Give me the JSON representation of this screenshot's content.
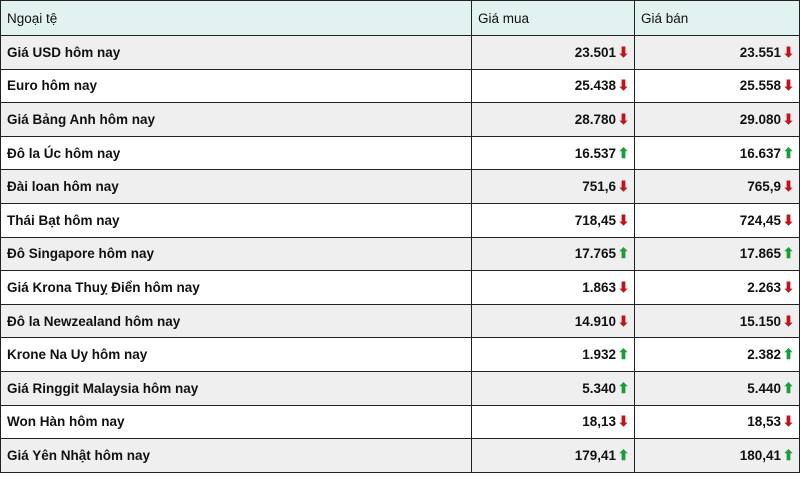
{
  "header": {
    "currency": "Ngoại tệ",
    "buy": "Giá mua",
    "sell": "Giá bán"
  },
  "colors": {
    "down": "#c0141c",
    "up": "#1a9c3a",
    "header_bg": "#e1f2f0"
  },
  "rows": [
    {
      "name": "Giá USD hôm nay",
      "buy": "23.501",
      "buy_trend": "down",
      "sell": "23.551",
      "sell_trend": "down"
    },
    {
      "name": "Euro hôm nay",
      "buy": "25.438",
      "buy_trend": "down",
      "sell": "25.558",
      "sell_trend": "down"
    },
    {
      "name": "Giá Bảng Anh hôm nay",
      "buy": "28.780",
      "buy_trend": "down",
      "sell": "29.080",
      "sell_trend": "down"
    },
    {
      "name": "Đô la Úc hôm nay",
      "buy": "16.537",
      "buy_trend": "up",
      "sell": "16.637",
      "sell_trend": "up"
    },
    {
      "name": "Đài loan hôm nay",
      "buy": "751,6",
      "buy_trend": "down",
      "sell": "765,9",
      "sell_trend": "down"
    },
    {
      "name": "Thái Bạt hôm nay",
      "buy": "718,45",
      "buy_trend": "down",
      "sell": "724,45",
      "sell_trend": "down"
    },
    {
      "name": "Đô Singapore hôm nay",
      "buy": "17.765",
      "buy_trend": "up",
      "sell": "17.865",
      "sell_trend": "up"
    },
    {
      "name": "Giá Krona Thuỵ Điển hôm nay",
      "buy": "1.863",
      "buy_trend": "down",
      "sell": "2.263",
      "sell_trend": "down"
    },
    {
      "name": "Đô la Newzealand hôm nay",
      "buy": "14.910",
      "buy_trend": "down",
      "sell": "15.150",
      "sell_trend": "down"
    },
    {
      "name": "Krone Na Uy hôm nay",
      "buy": "1.932",
      "buy_trend": "up",
      "sell": "2.382",
      "sell_trend": "up"
    },
    {
      "name": "Giá Ringgit Malaysia hôm nay",
      "buy": "5.340",
      "buy_trend": "up",
      "sell": "5.440",
      "sell_trend": "up"
    },
    {
      "name": "Won Hàn hôm nay",
      "buy": "18,13",
      "buy_trend": "down",
      "sell": "18,53",
      "sell_trend": "down"
    },
    {
      "name": "Giá Yên Nhật hôm nay",
      "buy": "179,41",
      "buy_trend": "up",
      "sell": "180,41",
      "sell_trend": "up"
    }
  ]
}
